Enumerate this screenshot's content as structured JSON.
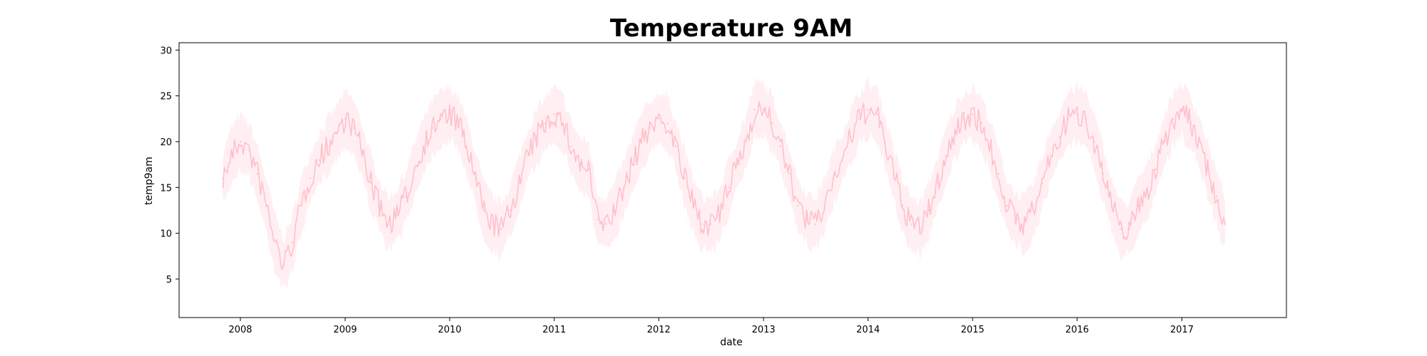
{
  "chart_data": {
    "type": "line",
    "title": "Temperature 9AM",
    "xlabel": "date",
    "ylabel": "temp9am",
    "x_ticks": [
      "2008",
      "2009",
      "2010",
      "2011",
      "2012",
      "2013",
      "2014",
      "2015",
      "2016",
      "2017"
    ],
    "y_ticks": [
      5,
      10,
      15,
      20,
      25,
      30
    ],
    "xlim": [
      "2007-06-01",
      "2018-01-01"
    ],
    "ylim": [
      0.8,
      30.8
    ],
    "grid": false,
    "series": [
      {
        "color": "#ffc0cb",
        "band_color": "#ffc0cb",
        "x": [
          "2007-11-01",
          "2007-12-01",
          "2008-01-01",
          "2008-02-01",
          "2008-03-01",
          "2008-04-01",
          "2008-05-01",
          "2008-06-01",
          "2008-07-01",
          "2008-08-01",
          "2008-09-01",
          "2008-10-01",
          "2008-11-01",
          "2008-12-01",
          "2009-01-01",
          "2009-02-01",
          "2009-03-01",
          "2009-04-01",
          "2009-05-01",
          "2009-06-01",
          "2009-07-01",
          "2009-08-01",
          "2009-09-01",
          "2009-10-01",
          "2009-11-01",
          "2009-12-01",
          "2010-01-01",
          "2010-02-01",
          "2010-03-01",
          "2010-04-01",
          "2010-05-01",
          "2010-06-01",
          "2010-07-01",
          "2010-08-01",
          "2010-09-01",
          "2010-10-01",
          "2010-11-01",
          "2010-12-01",
          "2011-01-01",
          "2011-02-01",
          "2011-03-01",
          "2011-04-01",
          "2011-05-01",
          "2011-06-01",
          "2011-07-01",
          "2011-08-01",
          "2011-09-01",
          "2011-10-01",
          "2011-11-01",
          "2011-12-01",
          "2012-01-01",
          "2012-02-01",
          "2012-03-01",
          "2012-04-01",
          "2012-05-01",
          "2012-06-01",
          "2012-07-01",
          "2012-08-01",
          "2012-09-01",
          "2012-10-01",
          "2012-11-01",
          "2012-12-01",
          "2013-01-01",
          "2013-02-01",
          "2013-03-01",
          "2013-04-01",
          "2013-05-01",
          "2013-06-01",
          "2013-07-01",
          "2013-08-01",
          "2013-09-01",
          "2013-10-01",
          "2013-11-01",
          "2013-12-01",
          "2014-01-01",
          "2014-02-01",
          "2014-03-01",
          "2014-04-01",
          "2014-05-01",
          "2014-06-01",
          "2014-07-01",
          "2014-08-01",
          "2014-09-01",
          "2014-10-01",
          "2014-11-01",
          "2014-12-01",
          "2015-01-01",
          "2015-02-01",
          "2015-03-01",
          "2015-04-01",
          "2015-05-01",
          "2015-06-01",
          "2015-07-01",
          "2015-08-01",
          "2015-09-01",
          "2015-10-01",
          "2015-11-01",
          "2015-12-01",
          "2016-01-01",
          "2016-02-01",
          "2016-03-01",
          "2016-04-01",
          "2016-05-01",
          "2016-06-01",
          "2016-07-01",
          "2016-08-01",
          "2016-09-01",
          "2016-10-01",
          "2016-11-01",
          "2016-12-01",
          "2017-01-01",
          "2017-02-01",
          "2017-03-01",
          "2017-04-01",
          "2017-05-01",
          "2017-06-01"
        ],
        "y": [
          16,
          18.5,
          20,
          19,
          16.5,
          13,
          9,
          6.5,
          9,
          13,
          16,
          18,
          19.5,
          21,
          22.5,
          21.5,
          19,
          15.5,
          13,
          11,
          12,
          14,
          17,
          19.5,
          21.5,
          22.5,
          23,
          22,
          19.5,
          16,
          12.5,
          11,
          10.5,
          12.5,
          15.5,
          18.5,
          20.5,
          22,
          23,
          22,
          19.5,
          17.5,
          17,
          11.5,
          11,
          12.5,
          15,
          17.5,
          20,
          21.5,
          22.5,
          22,
          19.5,
          16,
          13,
          11,
          11,
          12,
          15,
          17.5,
          20,
          23.5,
          23.5,
          22,
          19.5,
          16.5,
          13,
          11.5,
          11,
          13,
          16,
          18,
          20.5,
          22.5,
          23.5,
          23,
          20,
          16.5,
          13,
          11,
          10.5,
          12.5,
          15.5,
          18.5,
          21,
          22.5,
          23,
          22,
          19.5,
          16.5,
          13,
          11.5,
          11,
          12.5,
          15.5,
          18.5,
          20.5,
          22.5,
          23,
          22.5,
          20,
          16.5,
          13,
          10.5,
          10.5,
          13,
          14.5,
          17,
          20,
          22.5,
          23.5,
          22,
          20,
          17,
          14,
          11
        ]
      }
    ]
  }
}
